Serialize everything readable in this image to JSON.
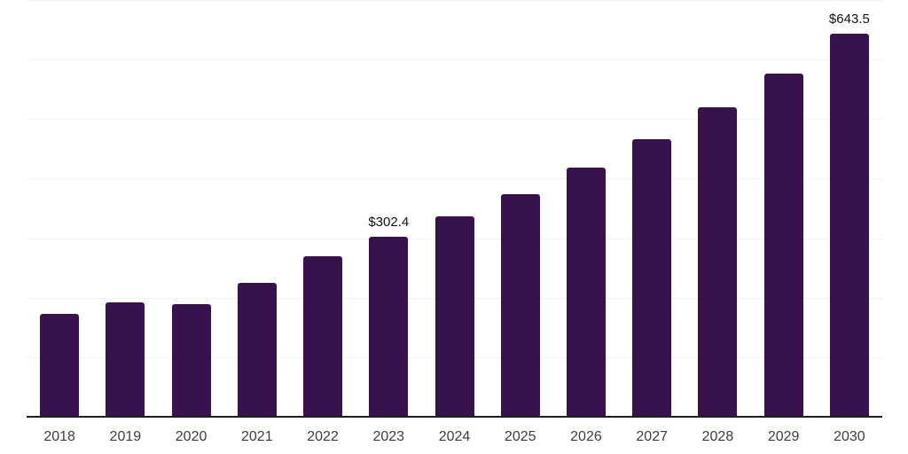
{
  "chart_data": {
    "type": "bar",
    "title": "",
    "categories": [
      "2018",
      "2019",
      "2020",
      "2021",
      "2022",
      "2023",
      "2024",
      "2025",
      "2026",
      "2027",
      "2028",
      "2029",
      "2030"
    ],
    "values": [
      173.0,
      192.7,
      188.8,
      225.1,
      269.9,
      302.4,
      336.4,
      374.3,
      418.4,
      466.2,
      519.2,
      576.4,
      643.5
    ],
    "data_labels": {
      "2023": "$302.4",
      "2030": "$643.5"
    },
    "xlabel": "",
    "ylabel": "",
    "ylim": [
      0,
      700
    ],
    "grid_interval": 100,
    "grid": true,
    "legend_position": "none",
    "colors": {
      "bar": "#38124C",
      "grid": "#F2F2F2",
      "axis": "#1F1F1F",
      "data_label_text": "#111111",
      "tick_label_text": "#3D3D3D",
      "background": "#FFFFFF"
    }
  }
}
